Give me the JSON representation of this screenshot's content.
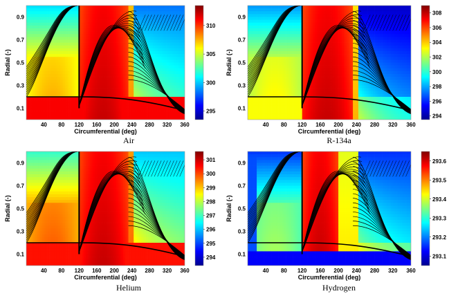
{
  "chart_data": [
    {
      "type": "heatmap",
      "caption": "Air",
      "xlabel": "Circumferential (deg)",
      "ylabel": "Radial (-)",
      "xlim": [
        0,
        360
      ],
      "ylim": [
        0,
        1.0
      ],
      "xticks": [
        "40",
        "80",
        "120",
        "160",
        "200",
        "240",
        "280",
        "320",
        "360"
      ],
      "yticks": [
        "0.1",
        "0.3",
        "0.5",
        "0.7",
        "0.9"
      ],
      "colorbar_range": [
        293.5,
        313.5
      ],
      "colorbar_ticks": [
        "295",
        "300",
        "305",
        "310"
      ],
      "fields": {
        "low_level": 0.62,
        "hot_band": [
          120,
          230
        ],
        "mid_band": [
          232,
          245
        ],
        "tail_level": 0.42
      }
    },
    {
      "type": "heatmap",
      "caption": "R-134a",
      "xlabel": "Circumferential (deg)",
      "ylabel": "Radial (-)",
      "xlim": [
        0,
        360
      ],
      "ylim": [
        0,
        1.0
      ],
      "xticks": [
        "40",
        "80",
        "120",
        "160",
        "200",
        "240",
        "280",
        "320",
        "360"
      ],
      "yticks": [
        "0.1",
        "0.3",
        "0.5",
        "0.7",
        "0.9"
      ],
      "colorbar_range": [
        293.5,
        309.0
      ],
      "colorbar_ticks": [
        "294",
        "296",
        "298",
        "300",
        "302",
        "304",
        "306",
        "308"
      ],
      "fields": {
        "low_level": 0.55,
        "hot_band": [
          120,
          230
        ],
        "mid_band": [
          232,
          245
        ],
        "tail_level": 0.25
      }
    },
    {
      "type": "heatmap",
      "caption": "Helium",
      "xlabel": "Circumferential (deg)",
      "ylabel": "Radial (-)",
      "xlim": [
        0,
        360
      ],
      "ylim": [
        0,
        1.0
      ],
      "xticks": [
        "40",
        "80",
        "120",
        "160",
        "200",
        "240",
        "280",
        "320",
        "360"
      ],
      "yticks": [
        "0.1",
        "0.3",
        "0.5",
        "0.7",
        "0.9"
      ],
      "colorbar_range": [
        293.4,
        301.6
      ],
      "colorbar_ticks": [
        "294",
        "295",
        "296",
        "297",
        "298",
        "299",
        "300",
        "301"
      ],
      "fields": {
        "low_level": 0.7,
        "hot_band": [
          120,
          230
        ],
        "mid_band": [
          232,
          245
        ],
        "tail_level": 0.5
      }
    },
    {
      "type": "heatmap",
      "caption": "Hydrogen",
      "xlabel": "Circumferential (deg)",
      "ylabel": "Radial (-)",
      "xlim": [
        0,
        360
      ],
      "ylim": [
        0,
        1.0
      ],
      "xticks": [
        "40",
        "80",
        "120",
        "160",
        "200",
        "240",
        "280",
        "320",
        "360"
      ],
      "yticks": [
        "0.1",
        "0.3",
        "0.5",
        "0.7",
        "0.9"
      ],
      "colorbar_range": [
        293.05,
        293.65
      ],
      "colorbar_ticks": [
        "293.1",
        "293.2",
        "293.3",
        "293.4",
        "293.5",
        "293.6"
      ],
      "fields": {
        "low_level": 0.45,
        "hot_band": [
          120,
          200
        ],
        "mid_band": [
          200,
          245
        ],
        "tail_level": 0.35
      }
    }
  ]
}
